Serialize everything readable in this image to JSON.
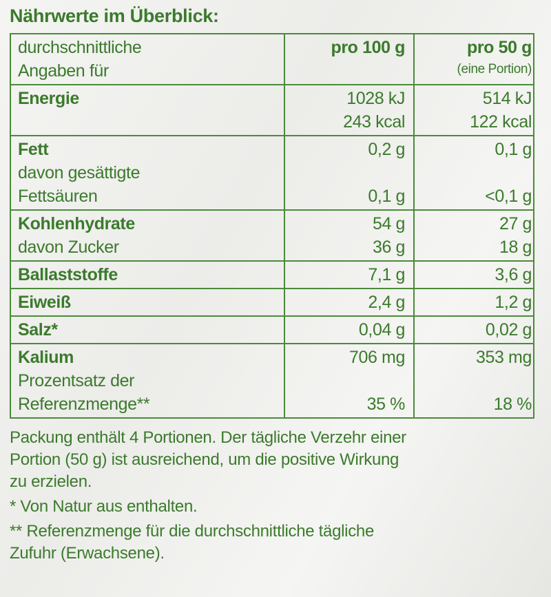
{
  "title": "Nährwerte im Überblick:",
  "header": {
    "label_line1": "durchschnittliche",
    "label_line2": "Angaben für",
    "col1": "pro 100 g",
    "col2": "pro 50 g",
    "col2_sub": "(eine Portion)"
  },
  "rows": [
    {
      "lines": [
        {
          "label": "Energie",
          "bold": true,
          "v1": "1028 kJ",
          "v2": "514 kJ"
        },
        {
          "label": "",
          "v1": "243 kcal",
          "v2": "122 kcal"
        }
      ]
    },
    {
      "lines": [
        {
          "label": "Fett",
          "bold": true,
          "v1": "0,2 g",
          "v2": "0,1 g"
        },
        {
          "label": "davon gesättigte",
          "v1": "",
          "v2": ""
        },
        {
          "label": "Fettsäuren",
          "v1": "0,1 g",
          "v2": "<0,1 g"
        }
      ]
    },
    {
      "lines": [
        {
          "label": "Kohlenhydrate",
          "bold": true,
          "v1": "54 g",
          "v2": "27 g"
        },
        {
          "label": "davon Zucker",
          "v1": "36 g",
          "v2": "18 g"
        }
      ]
    },
    {
      "lines": [
        {
          "label": "Ballaststoffe",
          "bold": true,
          "v1": "7,1 g",
          "v2": "3,6 g"
        }
      ]
    },
    {
      "lines": [
        {
          "label": "Eiweiß",
          "bold": true,
          "v1": "2,4 g",
          "v2": "1,2 g"
        }
      ]
    },
    {
      "lines": [
        {
          "label": "Salz*",
          "bold": true,
          "v1": "0,04 g",
          "v2": "0,02 g"
        }
      ]
    },
    {
      "lines": [
        {
          "label": "Kalium",
          "bold": true,
          "v1": "706 mg",
          "v2": "353 mg"
        },
        {
          "label": "Prozentsatz der",
          "v1": "",
          "v2": ""
        },
        {
          "label": "Referenzmenge**",
          "v1": "35 %",
          "v2": "18 %"
        }
      ]
    }
  ],
  "footer": {
    "note": [
      "Packung enthält 4 Portionen. Der tägliche Verzehr einer",
      "Portion (50 g) ist ausreichend, um die positive Wirkung",
      "zu erzielen."
    ],
    "footnote1": "* Von Natur aus enthalten.",
    "footnote2": [
      "** Referenzmenge für die durchschnittliche tägliche",
      "Zufuhr (Erwachsene)."
    ]
  },
  "colors": {
    "text": "#3b7a2c",
    "border": "#4a8a3a"
  }
}
